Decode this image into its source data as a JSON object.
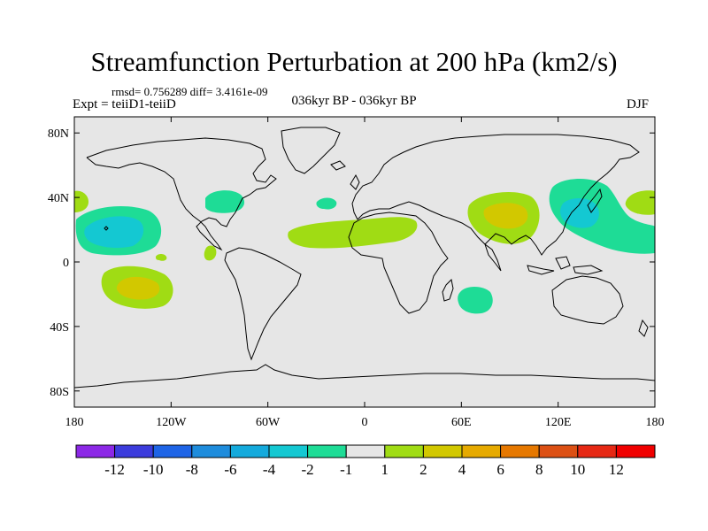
{
  "header": {
    "title": "Streamfunction Perturbation at 200 hPa (km2/s)",
    "stats": "rmsd= 0.756289 diff= 3.4161e-09",
    "left_label": "Expt = teiiD1-teiiD",
    "center_label": "036kyr BP - 036kyr BP",
    "right_label": "DJF"
  },
  "map": {
    "projection": "cylindrical-equidistant",
    "lon_range": [
      -180,
      180
    ],
    "lat_range": [
      -90,
      90
    ],
    "background_color": "#e6e6e6",
    "y_axis_labels": [
      "80N",
      "40N",
      "0",
      "40S",
      "80S"
    ],
    "x_axis_labels": [
      "180",
      "120W",
      "60W",
      "0",
      "60E",
      "120E",
      "180"
    ],
    "anomalies": [
      {
        "name": "central-north-pacific",
        "lon": -155,
        "lat": 20,
        "sign": "negative",
        "peak_level": -2
      },
      {
        "name": "south-pacific",
        "lon": -145,
        "lat": -15,
        "sign": "positive",
        "peak_level": 4
      },
      {
        "name": "eastern-us",
        "lon": -82,
        "lat": 36,
        "sign": "negative",
        "peak_level": -1
      },
      {
        "name": "mexico-pacific",
        "lon": -95,
        "lat": 5,
        "sign": "positive",
        "peak_level": 1
      },
      {
        "name": "north-atlantic-sahara",
        "lon": -5,
        "lat": 18,
        "sign": "positive",
        "peak_level": 2
      },
      {
        "name": "tibet",
        "lon": 85,
        "lat": 32,
        "sign": "positive",
        "peak_level": 4
      },
      {
        "name": "southern-africa",
        "lon": 62,
        "lat": -22,
        "sign": "negative",
        "peak_level": -1
      },
      {
        "name": "japan-northwest-pacific",
        "lon": 140,
        "lat": 35,
        "sign": "negative",
        "peak_level": -2
      },
      {
        "name": "dateline-north-pacific",
        "lon": 175,
        "lat": 38,
        "sign": "positive",
        "peak_level": 1
      }
    ]
  },
  "colorbar": {
    "labels": [
      "-12",
      "-10",
      "-8",
      "-6",
      "-4",
      "-2",
      "-1",
      "1",
      "2",
      "4",
      "6",
      "8",
      "10",
      "12"
    ],
    "colors": [
      "#8c28e6",
      "#3c3cdc",
      "#1e64e6",
      "#1e8cdc",
      "#14aadc",
      "#14c8d2",
      "#1edc96",
      "#e6e6e6",
      "#a0dc14",
      "#d2c800",
      "#e6aa00",
      "#e67800",
      "#dc5014",
      "#e62814",
      "#f00000"
    ]
  }
}
